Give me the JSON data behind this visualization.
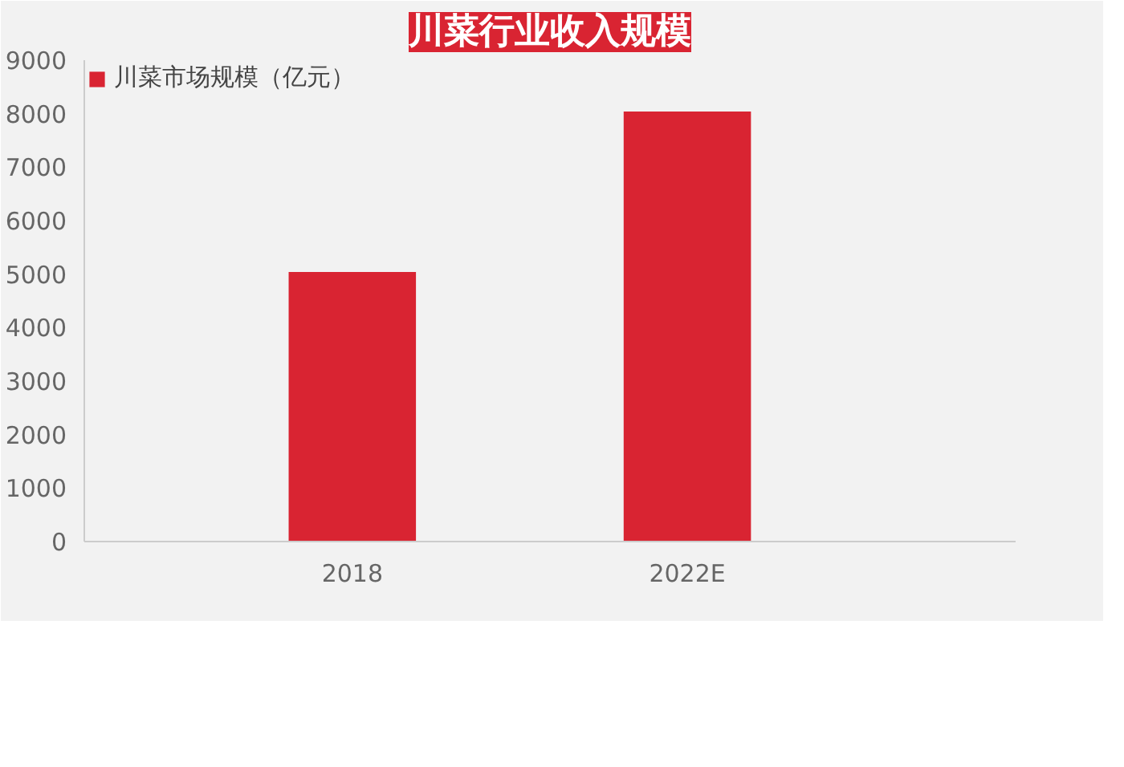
{
  "chart_data": {
    "type": "bar",
    "title": "川菜行业收入规模",
    "categories": [
      "2018",
      "2022E"
    ],
    "series": [
      {
        "name": "川菜市场规模（亿元）",
        "color": "#d92432",
        "values": [
          5040,
          8040
        ]
      }
    ],
    "ylim": [
      0,
      9000
    ],
    "yticks": [
      0,
      1000,
      2000,
      3000,
      4000,
      5000,
      6000,
      7000,
      8000,
      9000
    ],
    "grid": false,
    "legend": "top left"
  }
}
